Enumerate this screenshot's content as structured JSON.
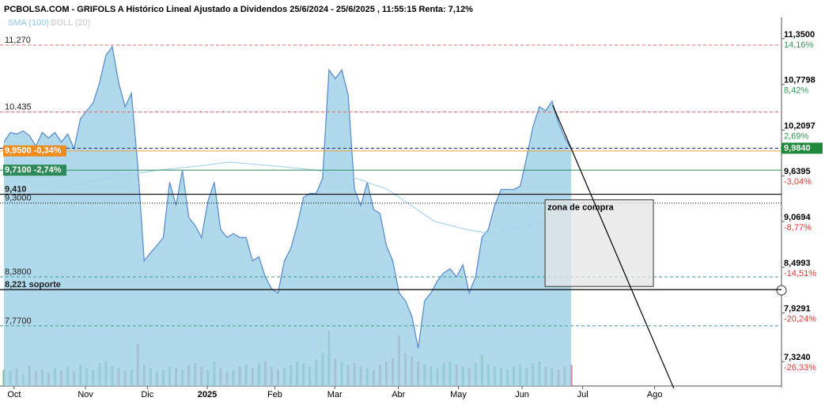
{
  "chart_data": {
    "type": "area",
    "title": "PCBOLSA.COM - GRIFOLS A Histórico Lineal Ajustado a Dividendos 25/6/2024 - 25/6/2025 , 11:55:15 Renta: 7,12%",
    "legend": [
      "SMA (100)",
      "BOLL (20)"
    ],
    "xlim": [
      0,
      122
    ],
    "ylim": [
      7.019,
      11.615
    ],
    "xticks": [
      {
        "value": 1.6,
        "label": "Oct"
      },
      {
        "value": 12.8,
        "label": "Nov"
      },
      {
        "value": 22.5,
        "label": "Dic"
      },
      {
        "value": 31.9,
        "label": "2025"
      },
      {
        "value": 42.5,
        "label": "Feb"
      },
      {
        "value": 51.9,
        "label": "Mar"
      },
      {
        "value": 61.9,
        "label": "Abr"
      },
      {
        "value": 71.3,
        "label": "May"
      },
      {
        "value": 81.3,
        "label": "Jun"
      },
      {
        "value": 90.8,
        "label": "Jul"
      },
      {
        "value": 102.1,
        "label": "Ago"
      }
    ],
    "yticks": [
      {
        "value": 11.35,
        "label": "11,3500"
      },
      {
        "value": 10.7798,
        "label": "10,7798"
      },
      {
        "value": 10.2097,
        "label": "10,2097"
      },
      {
        "value": 9.6395,
        "label": "9,6395"
      },
      {
        "value": 9.0694,
        "label": "9,0694"
      },
      {
        "value": 8.4993,
        "label": "8,4993"
      },
      {
        "value": 7.9291,
        "label": "7,9291"
      },
      {
        "value": 7.324,
        "label": "7,3240"
      }
    ],
    "ytick_pct": [
      "14,16%",
      "8,42%",
      "2,69%",
      "-3,04%",
      "-8,77%",
      "-14,51%",
      "-20,24%",
      "-26,33%"
    ],
    "series": [
      {
        "name": "GRIFOLS A",
        "color": "#5b8fd0",
        "values": [
          10.06,
          10.18,
          10.16,
          10.2,
          10.14,
          10.01,
          10.18,
          10.11,
          10.18,
          10.06,
          10.16,
          9.98,
          10.35,
          10.45,
          10.55,
          10.8,
          11.14,
          11.25,
          10.8,
          10.5,
          10.67,
          9.76,
          8.58,
          8.68,
          8.77,
          8.87,
          9.56,
          9.27,
          9.71,
          9.12,
          9.02,
          8.87,
          9.32,
          9.56,
          8.97,
          8.87,
          8.92,
          8.87,
          8.87,
          8.58,
          8.63,
          8.38,
          8.23,
          8.18,
          8.58,
          8.73,
          9.02,
          9.37,
          9.42,
          9.42,
          9.61,
          10.96,
          10.85,
          10.96,
          10.65,
          9.47,
          9.27,
          9.56,
          9.22,
          9.17,
          8.77,
          8.58,
          8.18,
          8.08,
          7.89,
          7.49,
          8.08,
          8.18,
          8.33,
          8.43,
          8.48,
          8.38,
          8.53,
          8.18,
          8.38,
          8.87,
          8.97,
          9.27,
          9.47,
          9.47,
          9.47,
          9.51,
          9.86,
          10.25,
          10.5,
          10.45,
          10.57,
          10.3,
          10.11,
          9.98
        ]
      },
      {
        "name": "SMA (100)",
        "color": "#a9d4ef",
        "x": [
          5.6,
          11.8,
          18,
          24.2,
          30.4,
          35.4,
          42.8,
          49,
          55.2,
          60.2,
          63.9,
          67.6,
          72.6,
          76.3,
          82.5,
          88.7
        ],
        "values": [
          9.42,
          9.54,
          9.64,
          9.71,
          9.76,
          9.81,
          9.76,
          9.71,
          9.61,
          9.47,
          9.27,
          9.07,
          8.97,
          8.92,
          9.02,
          9.22
        ]
      }
    ],
    "volume": [
      20,
      18,
      22,
      15,
      25,
      18,
      20,
      16,
      22,
      19,
      24,
      18,
      26,
      22,
      20,
      28,
      30,
      24,
      22,
      18,
      20,
      52,
      26,
      22,
      18,
      20,
      24,
      22,
      20,
      26,
      28,
      24,
      20,
      30,
      22,
      18,
      20,
      24,
      26,
      22,
      28,
      30,
      24,
      20,
      22,
      26,
      30,
      28,
      24,
      32,
      40,
      68,
      34,
      30,
      26,
      28,
      24,
      22,
      20,
      26,
      30,
      34,
      62,
      40,
      36,
      30,
      26,
      24,
      22,
      28,
      30,
      26,
      24,
      22,
      28,
      38,
      26,
      24,
      22,
      20,
      24,
      26,
      22,
      28,
      30,
      24,
      22,
      20,
      24,
      26
    ],
    "hlines": [
      {
        "value": 11.27,
        "label": "11,270",
        "color": "#e06666",
        "dash": "4 3"
      },
      {
        "value": 10.435,
        "label": "10.435",
        "color": "#e06666",
        "dash": "4 3"
      },
      {
        "value": 9.984,
        "label": "9,9840",
        "color": "#1a237e",
        "dash": "4 3",
        "label_side": "right",
        "box": "#1e8b3c"
      },
      {
        "value": 9.95,
        "label": "9,9500 -0,34%",
        "color": "#f5a040",
        "box": "#f08c1e"
      },
      {
        "value": 9.71,
        "label": "9,7100 -2,74%",
        "color": "#2e8b57",
        "box": "#2e8b57"
      },
      {
        "value": 9.41,
        "label": "9,410",
        "color": "#000000",
        "bold": true
      },
      {
        "value": 9.3,
        "label": "9,3000",
        "color": "#000000",
        "dash": "1 2"
      },
      {
        "value": 8.38,
        "label": "8,3800",
        "color": "#3a9a8a",
        "dash": "4 3"
      },
      {
        "value": 8.221,
        "label": "8,221  soporte",
        "color": "#000000",
        "bold": true
      },
      {
        "value": 7.77,
        "label": "7,7700",
        "color": "#3a9a8a",
        "dash": "4 3"
      }
    ],
    "zone": {
      "label": "zona de compra",
      "x": [
        84.9,
        101.9
      ],
      "y": [
        9.34,
        8.26
      ]
    },
    "trendline": {
      "x": [
        86.1,
        105.1
      ],
      "y": [
        10.52,
        6.99
      ]
    }
  }
}
